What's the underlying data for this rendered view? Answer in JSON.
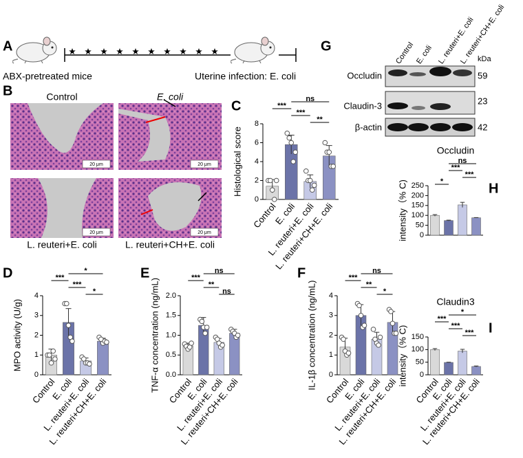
{
  "panel_labels": [
    "A",
    "B",
    "C",
    "D",
    "E",
    "F",
    "G",
    "H",
    "I"
  ],
  "schematic": {
    "left_label": "ABX-pretreated mice",
    "right_label": "Uterine infection: E. coli"
  },
  "histology": {
    "captions": [
      "Control",
      "E. coli",
      "L. reuteri+E. coli",
      "L. reuteri+CH+E. coli"
    ],
    "scale_bar": "20 μm"
  },
  "western_blot": {
    "lanes": [
      "Control",
      "E. coli",
      "L. reuteri+E. coli",
      "L. reuteri+CH+E. coli"
    ],
    "unit": "kDa",
    "rows": [
      {
        "name": "Occludin",
        "kda": 59
      },
      {
        "name": "Claudin-3",
        "kda": 23
      },
      {
        "name": "β-actin",
        "kda": 42
      }
    ]
  },
  "chart_data": [
    {
      "type": "bar",
      "ylabel": "Histological score",
      "categories": [
        "Control",
        "E. coli",
        "L. reuteri+E. coli",
        "L. reuteri+CH+E. coli"
      ],
      "colors": [
        "#d9d9d9",
        "#6b73a8",
        "#c5c9e6",
        "#8b91c3"
      ],
      "values": [
        1.4,
        5.8,
        1.9,
        4.6
      ],
      "errors": [
        0.7,
        1.0,
        0.7,
        1.1
      ],
      "points": [
        [
          2,
          2,
          1,
          0,
          2
        ],
        [
          7,
          6.5,
          6,
          4,
          5
        ],
        [
          3,
          2,
          2,
          1,
          1.5
        ],
        [
          6,
          5,
          5,
          3.5,
          3.5
        ]
      ],
      "ylim": [
        0,
        8
      ],
      "yticks": [
        0,
        2,
        4,
        6,
        8
      ],
      "annotations": [
        {
          "between": [
            2,
            3
          ],
          "label": "**"
        },
        {
          "between": [
            1,
            2
          ],
          "label": "***"
        },
        {
          "between": [
            0,
            1
          ],
          "label": "***"
        },
        {
          "between": [
            1,
            3
          ],
          "label": "ns"
        }
      ]
    },
    {
      "type": "bar",
      "ylabel": "MPO activity (U/g)",
      "categories": [
        "Control",
        "E. coli",
        "L. reuteri+E. coli",
        "L. reuteri+CH+E. coli"
      ],
      "colors": [
        "#d9d9d9",
        "#6b73a8",
        "#c5c9e6",
        "#8b91c3"
      ],
      "values": [
        1.0,
        2.65,
        0.7,
        1.7
      ],
      "errors": [
        0.3,
        0.7,
        0.15,
        0.15
      ],
      "points": [
        [
          1.0,
          1.0,
          0.6,
          1.2,
          0.8
        ],
        [
          3.6,
          3.6,
          2.5,
          1.9,
          1.7
        ],
        [
          0.9,
          0.8,
          0.6,
          0.6,
          0.55
        ],
        [
          1.9,
          1.8,
          1.6,
          1.7,
          1.65
        ]
      ],
      "ylim": [
        0,
        4
      ],
      "yticks": [
        0,
        1,
        2,
        3,
        4
      ],
      "annotations": [
        {
          "between": [
            2,
            3
          ],
          "label": "*"
        },
        {
          "between": [
            1,
            2
          ],
          "label": "***"
        },
        {
          "between": [
            0,
            1
          ],
          "label": "***"
        },
        {
          "between": [
            1,
            3
          ],
          "label": "*"
        }
      ]
    },
    {
      "type": "bar",
      "ylabel": "TNF-α concentration (ng/mL)",
      "categories": [
        "Control",
        "E. coli",
        "L. reuteri+E. coli",
        "L. reuteri+CH+E. coli"
      ],
      "colors": [
        "#d9d9d9",
        "#6b73a8",
        "#c5c9e6",
        "#8b91c3"
      ],
      "values": [
        0.73,
        1.25,
        0.82,
        1.05
      ],
      "errors": [
        0.07,
        0.2,
        0.1,
        0.1
      ],
      "points": [
        [
          0.78,
          0.72,
          0.65,
          0.7,
          0.8
        ],
        [
          1.4,
          1.35,
          1.2,
          1.05,
          1.2
        ],
        [
          0.95,
          0.9,
          0.8,
          0.7,
          0.75
        ],
        [
          1.15,
          1.1,
          1.05,
          0.95,
          1.0
        ]
      ],
      "ylim": [
        0,
        2
      ],
      "yticks": [
        {
          "value": 0,
          "label": "0.0"
        },
        0.5,
        {
          "value": 1,
          "label": "1.0"
        },
        1.5,
        {
          "value": 2,
          "label": "2.0"
        }
      ],
      "annotations": [
        {
          "between": [
            2,
            3
          ],
          "label": "ns"
        },
        {
          "between": [
            1,
            2
          ],
          "label": "**"
        },
        {
          "between": [
            0,
            1
          ],
          "label": "***"
        },
        {
          "between": [
            1,
            3
          ],
          "label": "ns"
        }
      ]
    },
    {
      "type": "bar",
      "ylabel": "IL-1β concentration (ng/mL)",
      "categories": [
        "Control",
        "E. coli",
        "L. reuteri+E. coli",
        "L. reuteri+CH+E. coli"
      ],
      "colors": [
        "#d9d9d9",
        "#6b73a8",
        "#c5c9e6",
        "#8b91c3"
      ],
      "values": [
        1.4,
        3.0,
        1.8,
        2.65
      ],
      "errors": [
        0.45,
        0.55,
        0.35,
        0.55
      ],
      "points": [
        [
          1.9,
          1.8,
          1.2,
          1.0,
          1.1
        ],
        [
          3.6,
          3.5,
          3.0,
          2.4,
          2.5
        ],
        [
          2.3,
          1.8,
          1.6,
          1.5,
          1.9
        ],
        [
          3.3,
          3.2,
          2.6,
          2.1,
          2.1
        ]
      ],
      "ylim": [
        0,
        4
      ],
      "yticks": [
        0,
        1,
        2,
        3,
        4
      ],
      "annotations": [
        {
          "between": [
            2,
            3
          ],
          "label": "*"
        },
        {
          "between": [
            1,
            2
          ],
          "label": "**"
        },
        {
          "between": [
            0,
            1
          ],
          "label": "***"
        },
        {
          "between": [
            1,
            3
          ],
          "label": "ns"
        }
      ]
    },
    {
      "type": "bar",
      "title": "Occludin",
      "ylabel": "intensity（% C)",
      "colors": [
        "#d9d9d9",
        "#6b73a8",
        "#c5c9e6",
        "#8b91c3"
      ],
      "values": [
        100,
        74,
        153,
        88
      ],
      "errors": [
        4,
        2,
        13,
        1
      ],
      "ylim": [
        0,
        250
      ],
      "yticks": [
        0,
        50,
        100,
        150,
        200,
        250
      ],
      "annotations": [
        {
          "between": [
            0,
            1
          ],
          "label": "*"
        },
        {
          "between": [
            2,
            3
          ],
          "label": "***"
        },
        {
          "between": [
            1,
            2
          ],
          "label": "***"
        },
        {
          "between": [
            1,
            3
          ],
          "label": "ns"
        }
      ]
    },
    {
      "type": "bar",
      "title": "Claudin3",
      "ylabel": "intensity（% C)",
      "categories": [
        "Control",
        "E. coli",
        "L. reuteri+E. coli",
        "L. reuteri+CH+E. coli"
      ],
      "colors": [
        "#d9d9d9",
        "#6b73a8",
        "#c5c9e6",
        "#8b91c3"
      ],
      "values": [
        100,
        49,
        94,
        33
      ],
      "errors": [
        4,
        1,
        7,
        2
      ],
      "ylim": [
        0,
        150
      ],
      "yticks": [
        0,
        50,
        100,
        150
      ],
      "annotations": [
        {
          "between": [
            2,
            3
          ],
          "label": "***"
        },
        {
          "between": [
            1,
            2
          ],
          "label": "***"
        },
        {
          "between": [
            0,
            1
          ],
          "label": "***"
        },
        {
          "between": [
            1,
            3
          ],
          "label": "*"
        }
      ]
    }
  ]
}
